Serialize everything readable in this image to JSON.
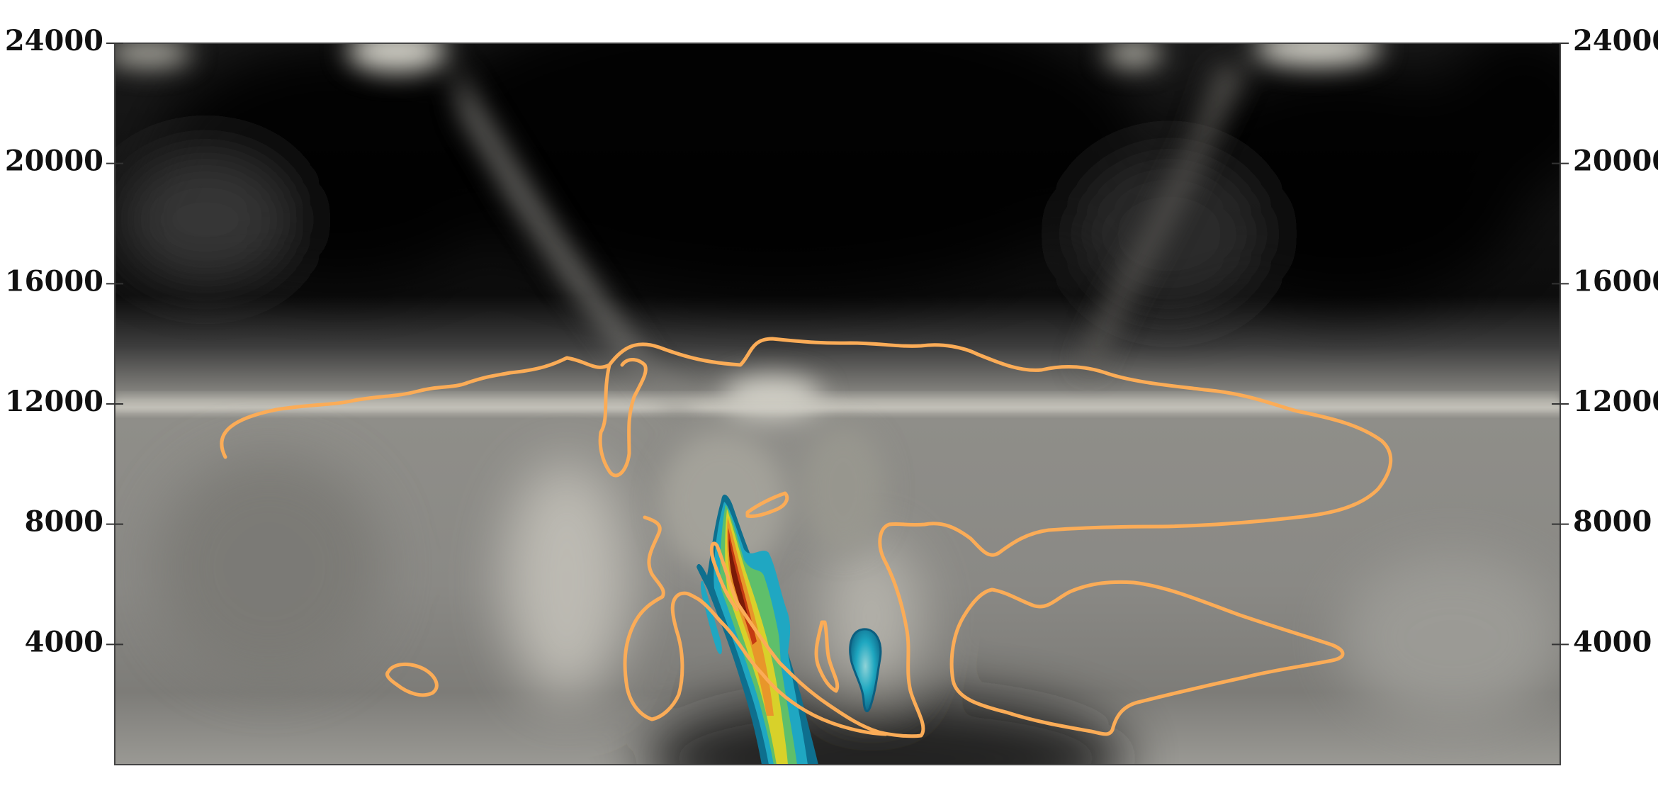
{
  "chart_data": {
    "type": "heatmap",
    "title": "",
    "xlabel": "",
    "ylabel": "",
    "ylim": [
      0,
      24000
    ],
    "yticks": [
      4000,
      8000,
      12000,
      16000,
      20000,
      24000
    ],
    "ytick_labels": [
      "4000",
      "8000",
      "12000",
      "16000",
      "20000",
      "24000"
    ],
    "y_axis_sides": [
      "left",
      "right"
    ],
    "x_tick_labels": [],
    "grid": false,
    "legend": "none",
    "layers": [
      {
        "kind": "grayscale background field",
        "colors": [
          "#000000",
          "#cfcdc4"
        ]
      },
      {
        "kind": "filled contour (rainbow colormap)",
        "colors": [
          "#0d6b8c",
          "#1aa9c4",
          "#5fbf6a",
          "#d8d12a",
          "#e8962a",
          "#c43a12",
          "#7a1a08"
        ]
      },
      {
        "kind": "line contour",
        "color": "#fbac57"
      }
    ]
  }
}
